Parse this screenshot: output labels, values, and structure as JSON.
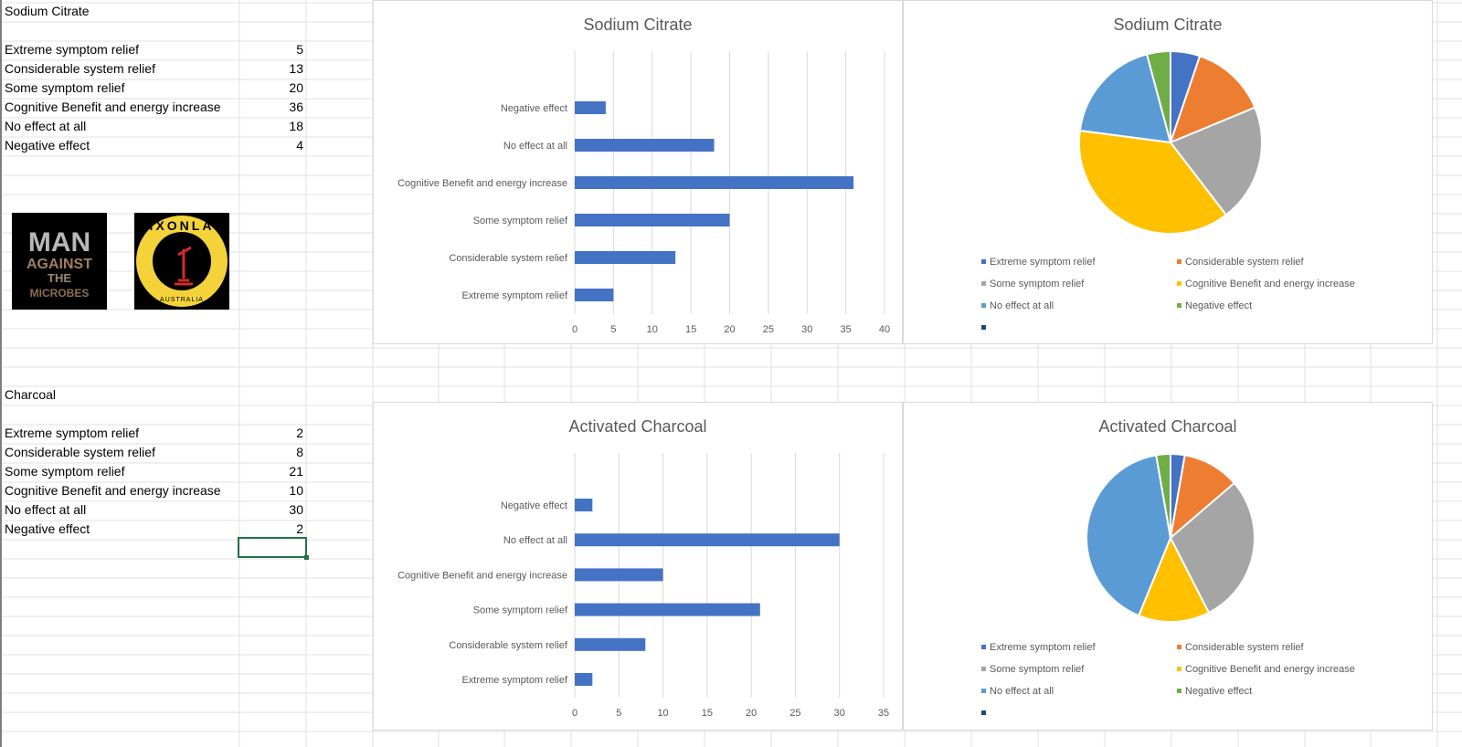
{
  "sheet": {
    "sections": [
      {
        "title": "Sodium Citrate",
        "rows": [
          {
            "label": "Extreme symptom relief",
            "value": 5
          },
          {
            "label": "Considerable system relief",
            "value": 13
          },
          {
            "label": "Some symptom relief",
            "value": 20
          },
          {
            "label": "Cognitive Benefit and energy increase",
            "value": 36
          },
          {
            "label": "No effect at all",
            "value": 18
          },
          {
            "label": "Negative effect",
            "value": 4
          }
        ]
      },
      {
        "title": "Charcoal",
        "rows": [
          {
            "label": "Extreme symptom relief",
            "value": 2
          },
          {
            "label": "Considerable system relief",
            "value": 8
          },
          {
            "label": "Some symptom relief",
            "value": 21
          },
          {
            "label": "Cognitive Benefit and energy increase",
            "value": 10
          },
          {
            "label": "No effect at all",
            "value": 30
          },
          {
            "label": "Negative effect",
            "value": 2
          }
        ]
      }
    ],
    "logos": [
      {
        "text": "MAN AGAINST THE MICROBES"
      },
      {
        "text": "NIXONLAB AUSTRALIA"
      }
    ]
  },
  "colors": {
    "bar": "#4472C4",
    "pie": [
      "#4472C4",
      "#ED7D31",
      "#A5A5A5",
      "#FFC000",
      "#5B9BD5",
      "#70AD47"
    ],
    "extra_legend": "#264478",
    "selection": "#217346"
  },
  "chart_data": [
    {
      "type": "bar",
      "orientation": "horizontal",
      "title": "Sodium Citrate",
      "categories": [
        "Extreme symptom relief",
        "Considerable system relief",
        "Some symptom relief",
        "Cognitive Benefit and energy increase",
        "No effect at all",
        "Negative effect"
      ],
      "values": [
        5,
        13,
        20,
        36,
        18,
        4
      ],
      "xlim": [
        0,
        40
      ],
      "ticks": [
        0,
        5,
        10,
        15,
        20,
        25,
        30,
        35,
        40
      ],
      "grid": true
    },
    {
      "type": "pie",
      "title": "Sodium Citrate",
      "categories": [
        "Extreme symptom relief",
        "Considerable system relief",
        "Some symptom relief",
        "Cognitive Benefit and energy increase",
        "No effect at all",
        "Negative effect"
      ],
      "values": [
        5,
        13,
        20,
        36,
        18,
        4
      ],
      "legend": "bottom"
    },
    {
      "type": "bar",
      "orientation": "horizontal",
      "title": "Activated Charcoal",
      "categories": [
        "Extreme symptom relief",
        "Considerable system relief",
        "Some symptom relief",
        "Cognitive Benefit and energy increase",
        "No effect at all",
        "Negative effect"
      ],
      "values": [
        2,
        8,
        21,
        10,
        30,
        2
      ],
      "xlim": [
        0,
        35
      ],
      "ticks": [
        0,
        5,
        10,
        15,
        20,
        25,
        30,
        35
      ],
      "grid": true
    },
    {
      "type": "pie",
      "title": "Activated Charcoal",
      "categories": [
        "Extreme symptom relief",
        "Considerable system relief",
        "Some symptom relief",
        "Cognitive Benefit and energy increase",
        "No effect at all",
        "Negative effect"
      ],
      "values": [
        2,
        8,
        21,
        10,
        30,
        2
      ],
      "legend": "bottom"
    }
  ]
}
